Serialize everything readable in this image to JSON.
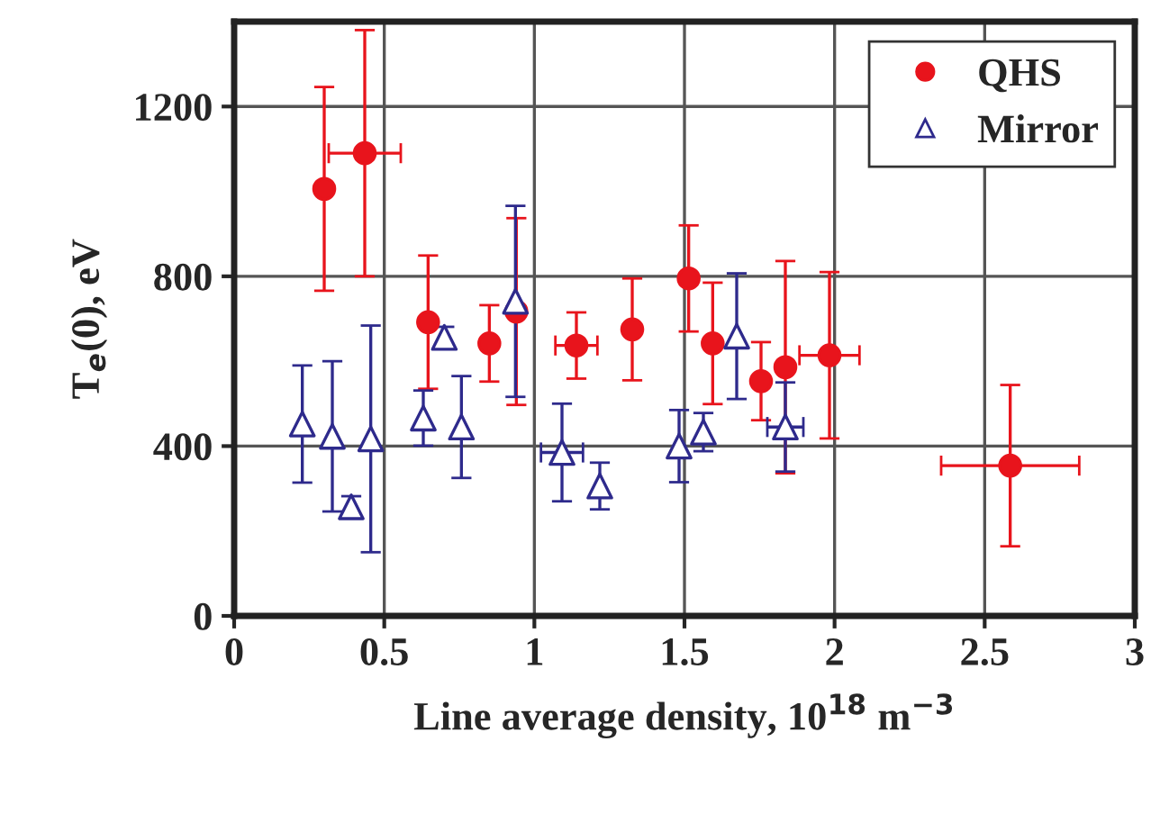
{
  "chart_data": {
    "type": "scatter",
    "xlabel": "Line average density, 10$^{18}$ m$^{−3}$",
    "ylabel": "T$_{e}$(0), eV",
    "xlim": [
      0,
      3
    ],
    "ylim": [
      0,
      1400
    ],
    "xticks": [
      0,
      0.5,
      1,
      1.5,
      2,
      2.5,
      3
    ],
    "yticks": [
      0,
      400,
      800,
      1200
    ],
    "grid": true,
    "legend": "top right",
    "series": [
      {
        "name": "QHS",
        "color": "#e8141c",
        "marker": "circle",
        "x": [
          0.3,
          0.435,
          0.646,
          0.85,
          0.94,
          1.14,
          1.326,
          1.514,
          1.594,
          1.755,
          1.836,
          1.983,
          2.585
        ],
        "values": [
          1006,
          1090,
          692,
          642,
          717,
          637,
          675,
          795,
          642,
          553,
          586,
          614,
          354
        ],
        "errors": [
          240,
          290,
          157,
          90,
          220,
          78,
          120,
          125,
          143,
          92,
          250,
          196,
          190
        ],
        "xerrors": [
          null,
          0.12,
          null,
          null,
          null,
          0.07,
          null,
          null,
          null,
          null,
          null,
          0.1,
          0.23
        ]
      },
      {
        "name": "Mirror",
        "color": "#2e2a8c",
        "marker": "triangle",
        "x": [
          0.227,
          0.327,
          0.39,
          0.455,
          0.63,
          0.7,
          0.757,
          0.937,
          1.092,
          1.218,
          1.482,
          1.563,
          1.674,
          1.836
        ],
        "values": [
          452,
          423,
          257,
          417,
          466,
          656,
          445,
          741,
          385,
          306,
          400,
          433,
          659,
          445
        ],
        "errors": [
          138,
          177,
          25,
          267,
          65,
          25,
          120,
          225,
          115,
          55,
          85,
          45,
          148,
          105
        ],
        "xerrors": [
          null,
          null,
          null,
          null,
          null,
          null,
          null,
          null,
          0.07,
          null,
          null,
          null,
          null,
          0.06
        ]
      }
    ]
  }
}
